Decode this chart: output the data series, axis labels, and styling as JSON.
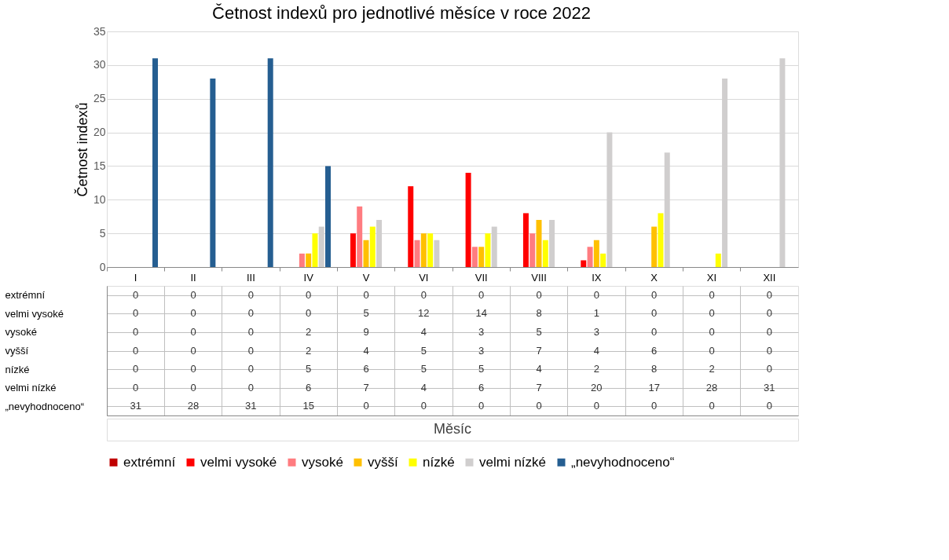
{
  "chart_data": {
    "type": "bar",
    "title": "Četnost indexů pro jednotlivé měsíce v roce 2022",
    "annotations": [
      "Měsíc"
    ],
    "ylabel": "Četnost indexů",
    "categories": [
      "I",
      "II",
      "III",
      "IV",
      "V",
      "VI",
      "VII",
      "VIII",
      "IX",
      "X",
      "XI",
      "XII"
    ],
    "series": [
      {
        "name": "extrémní",
        "color": "#c00000",
        "values": [
          0,
          0,
          0,
          0,
          0,
          0,
          0,
          0,
          0,
          0,
          0,
          0
        ]
      },
      {
        "name": "velmi vysoké",
        "color": "#ff0000",
        "values": [
          0,
          0,
          0,
          0,
          5,
          12,
          14,
          8,
          1,
          0,
          0,
          0
        ]
      },
      {
        "name": "vysoké",
        "color": "#ff7c80",
        "values": [
          0,
          0,
          0,
          2,
          9,
          4,
          3,
          5,
          3,
          0,
          0,
          0
        ]
      },
      {
        "name": "vyšší",
        "color": "#ffc000",
        "values": [
          0,
          0,
          0,
          2,
          4,
          5,
          3,
          7,
          4,
          6,
          0,
          0
        ]
      },
      {
        "name": "nízké",
        "color": "#ffff00",
        "values": [
          0,
          0,
          0,
          5,
          6,
          5,
          5,
          4,
          2,
          8,
          2,
          0
        ]
      },
      {
        "name": "velmi nízké",
        "color": "#d0cece",
        "values": [
          0,
          0,
          0,
          6,
          7,
          4,
          6,
          7,
          20,
          17,
          28,
          31
        ]
      },
      {
        "name": "„nevyhodnoceno“",
        "color": "#255e91",
        "values": [
          31,
          28,
          31,
          15,
          0,
          0,
          0,
          0,
          0,
          0,
          0,
          0
        ]
      }
    ],
    "ylim": [
      0,
      35
    ],
    "yticks": [
      0,
      5,
      10,
      15,
      20,
      25,
      30,
      35
    ],
    "grid": "y",
    "legend": "bottom",
    "data_labels": true
  }
}
